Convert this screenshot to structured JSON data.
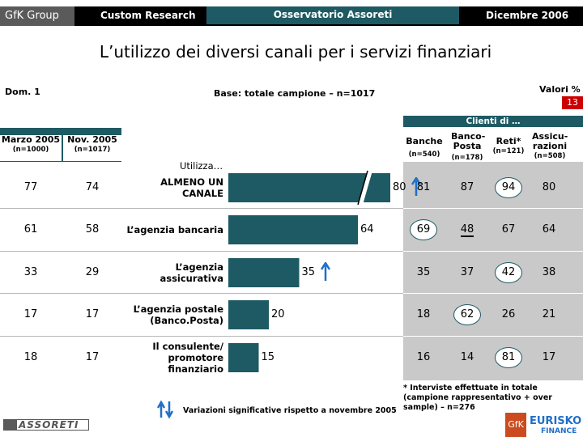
{
  "header": {
    "brand": "GfK Group",
    "left_label": "Custom Research",
    "center_label": "Osservatorio Assoreti",
    "date": "Dicembre 2006"
  },
  "title": "L’utilizzo dei diversi canali per i servizi finanziari",
  "meta": {
    "question": "Dom. 1",
    "base": "Base: totale campione – n=1017",
    "unit": "Valori %",
    "page_number": "13"
  },
  "left_columns": [
    {
      "label": "Marzo 2005",
      "n": "(n=1000)"
    },
    {
      "label": "Nov. 2005",
      "n": "(n=1017)"
    }
  ],
  "utilizza_label": "Utilizza…",
  "clienti_label": "Clienti di …",
  "right_columns": [
    {
      "label": "Banche",
      "n": "(n=540)"
    },
    {
      "label": "Banco-Posta",
      "n": "(n=178)"
    },
    {
      "label": "Reti*",
      "n": "(n=121)"
    },
    {
      "label": "Assicu-razioni",
      "n": "(n=508)"
    }
  ],
  "chart_data": {
    "type": "bar",
    "orientation": "horizontal",
    "title": "L’utilizzo dei diversi canali per i servizi finanziari",
    "unit": "Valori %",
    "categories": [
      "ALMENO UN CANALE",
      "L’agenzia bancaria",
      "L’agenzia assicurativa",
      "L’agenzia postale (Banco.Posta)",
      "Il consulente/ promotore finanziario"
    ],
    "values": [
      80,
      64,
      35,
      20,
      15
    ],
    "xlim": [
      0,
      100
    ],
    "axis_break_on_first_bar": true,
    "significant_increase": [
      "ALMENO UN CANALE",
      "L’agenzia assicurativa"
    ],
    "marzo_2005": [
      77,
      61,
      33,
      17,
      18
    ],
    "nov_2005": [
      74,
      58,
      29,
      17,
      17
    ],
    "clienti": {
      "Banche": [
        81,
        69,
        35,
        18,
        16
      ],
      "Banco-Posta": [
        87,
        48,
        37,
        62,
        14
      ],
      "Reti*": [
        94,
        67,
        42,
        26,
        81
      ],
      "Assicurazioni": [
        80,
        64,
        38,
        21,
        17
      ]
    },
    "circled": [
      [
        0,
        2
      ],
      [
        1,
        0
      ],
      [
        2,
        2
      ],
      [
        3,
        1
      ],
      [
        4,
        2
      ]
    ],
    "underlined": [
      [
        1,
        1
      ]
    ]
  },
  "rows": [
    {
      "label": "ALMENO UN CANALE",
      "marzo": "77",
      "nov": "74",
      "value": "80",
      "c1": "81",
      "c2": "87",
      "c3": "94",
      "c4": "80"
    },
    {
      "label": "L’agenzia bancaria",
      "marzo": "61",
      "nov": "58",
      "value": "64",
      "c1": "69",
      "c2": "48",
      "c3": "67",
      "c4": "64"
    },
    {
      "label": "L’agenzia assicurativa",
      "marzo": "33",
      "nov": "29",
      "value": "35",
      "c1": "35",
      "c2": "37",
      "c3": "42",
      "c4": "38"
    },
    {
      "label": "L’agenzia postale (Banco.Posta)",
      "marzo": "17",
      "nov": "17",
      "value": "20",
      "c1": "18",
      "c2": "62",
      "c3": "26",
      "c4": "21"
    },
    {
      "label": "Il consulente/ promotore finanziario",
      "marzo": "18",
      "nov": "17",
      "value": "15",
      "c1": "16",
      "c2": "14",
      "c3": "81",
      "c4": "17"
    }
  ],
  "footnote": "* Interviste effettuate in totale (campione rappresentativo + over sample) – n=276",
  "legend": "Variazioni significative rispetto a novembre 2005",
  "footer": {
    "left_logo": "ASSORETI",
    "right_logo_gfk": "GfK",
    "right_logo_eurisko": "EURISKO",
    "right_logo_finance": "FINANCE"
  },
  "colors": {
    "teal": "#1e5a63",
    "blue_arrow": "#1e6fc8",
    "red": "#cc0000"
  }
}
